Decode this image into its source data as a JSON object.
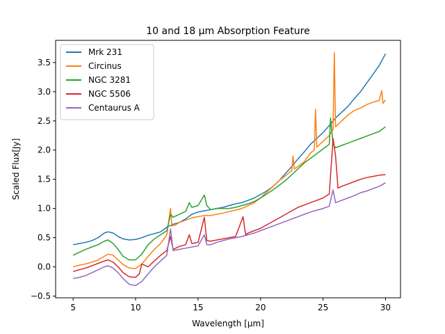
{
  "chart_data": {
    "type": "line",
    "title": "10 and 18 µm Absorption Feature",
    "xlabel": "Wavelength [μm]",
    "ylabel": "Scaled Flux[Jy]",
    "xlim": [
      3.6,
      31.2
    ],
    "ylim": [
      -0.53,
      3.88
    ],
    "xticks": [
      5,
      10,
      15,
      20,
      25,
      30
    ],
    "yticks": [
      -0.5,
      0.0,
      0.5,
      1.0,
      1.5,
      2.0,
      2.5,
      3.0,
      3.5
    ],
    "ytick_labels": [
      "−0.5",
      "0.0",
      "0.5",
      "1.0",
      "1.5",
      "2.0",
      "2.5",
      "3.0",
      "3.5"
    ],
    "grid": false,
    "legend_position": "top-left",
    "series": [
      {
        "name": "Mrk 231",
        "color": "#1f77b4",
        "points": [
          [
            5.0,
            0.38
          ],
          [
            5.5,
            0.4
          ],
          [
            6.0,
            0.42
          ],
          [
            6.5,
            0.45
          ],
          [
            7.0,
            0.5
          ],
          [
            7.5,
            0.58
          ],
          [
            7.8,
            0.6
          ],
          [
            8.2,
            0.58
          ],
          [
            8.6,
            0.52
          ],
          [
            9.0,
            0.48
          ],
          [
            9.5,
            0.46
          ],
          [
            10.0,
            0.47
          ],
          [
            10.5,
            0.5
          ],
          [
            11.0,
            0.54
          ],
          [
            11.5,
            0.57
          ],
          [
            12.0,
            0.6
          ],
          [
            12.5,
            0.68
          ],
          [
            13.0,
            0.73
          ],
          [
            13.5,
            0.76
          ],
          [
            14.0,
            0.82
          ],
          [
            14.5,
            0.9
          ],
          [
            15.0,
            0.94
          ],
          [
            15.5,
            0.96
          ],
          [
            16.0,
            0.98
          ],
          [
            16.5,
            1.0
          ],
          [
            17.0,
            1.02
          ],
          [
            17.5,
            1.05
          ],
          [
            18.0,
            1.08
          ],
          [
            18.5,
            1.1
          ],
          [
            19.0,
            1.14
          ],
          [
            19.5,
            1.18
          ],
          [
            20.0,
            1.24
          ],
          [
            20.5,
            1.3
          ],
          [
            21.0,
            1.38
          ],
          [
            21.5,
            1.48
          ],
          [
            22.0,
            1.6
          ],
          [
            22.5,
            1.72
          ],
          [
            23.0,
            1.85
          ],
          [
            23.5,
            1.97
          ],
          [
            24.0,
            2.1
          ],
          [
            24.5,
            2.2
          ],
          [
            25.0,
            2.3
          ],
          [
            25.5,
            2.42
          ],
          [
            26.0,
            2.55
          ],
          [
            26.5,
            2.65
          ],
          [
            27.0,
            2.75
          ],
          [
            27.5,
            2.88
          ],
          [
            28.0,
            3.0
          ],
          [
            28.5,
            3.15
          ],
          [
            29.0,
            3.3
          ],
          [
            29.5,
            3.45
          ],
          [
            30.0,
            3.65
          ]
        ]
      },
      {
        "name": "Circinus",
        "color": "#ff7f0e",
        "points": [
          [
            5.0,
            0.0
          ],
          [
            5.5,
            0.03
          ],
          [
            6.0,
            0.05
          ],
          [
            6.5,
            0.08
          ],
          [
            7.0,
            0.12
          ],
          [
            7.5,
            0.18
          ],
          [
            7.8,
            0.22
          ],
          [
            8.2,
            0.2
          ],
          [
            8.6,
            0.12
          ],
          [
            9.0,
            0.04
          ],
          [
            9.5,
            -0.02
          ],
          [
            10.0,
            -0.03
          ],
          [
            10.5,
            0.05
          ],
          [
            11.0,
            0.18
          ],
          [
            11.5,
            0.3
          ],
          [
            12.0,
            0.4
          ],
          [
            12.5,
            0.55
          ],
          [
            12.8,
            1.0
          ],
          [
            12.9,
            0.7
          ],
          [
            13.2,
            0.72
          ],
          [
            13.5,
            0.76
          ],
          [
            14.0,
            0.8
          ],
          [
            14.5,
            0.84
          ],
          [
            15.0,
            0.86
          ],
          [
            15.5,
            0.88
          ],
          [
            16.0,
            0.88
          ],
          [
            16.5,
            0.9
          ],
          [
            17.0,
            0.92
          ],
          [
            17.5,
            0.95
          ],
          [
            18.0,
            0.97
          ],
          [
            18.5,
            1.0
          ],
          [
            19.0,
            1.05
          ],
          [
            19.5,
            1.1
          ],
          [
            20.0,
            1.18
          ],
          [
            20.5,
            1.28
          ],
          [
            21.0,
            1.38
          ],
          [
            21.5,
            1.48
          ],
          [
            22.0,
            1.56
          ],
          [
            22.5,
            1.65
          ],
          [
            22.6,
            1.9
          ],
          [
            22.7,
            1.68
          ],
          [
            23.0,
            1.72
          ],
          [
            23.5,
            1.8
          ],
          [
            24.0,
            1.95
          ],
          [
            24.3,
            2.0
          ],
          [
            24.4,
            2.7
          ],
          [
            24.5,
            2.05
          ],
          [
            25.0,
            2.15
          ],
          [
            25.5,
            2.25
          ],
          [
            25.8,
            2.35
          ],
          [
            25.9,
            3.67
          ],
          [
            26.0,
            2.4
          ],
          [
            26.5,
            2.5
          ],
          [
            27.0,
            2.6
          ],
          [
            27.5,
            2.68
          ],
          [
            28.0,
            2.72
          ],
          [
            28.5,
            2.78
          ],
          [
            29.0,
            2.82
          ],
          [
            29.5,
            2.85
          ],
          [
            29.7,
            3.02
          ],
          [
            29.8,
            2.8
          ],
          [
            30.0,
            2.86
          ]
        ]
      },
      {
        "name": "NGC 3281",
        "color": "#2ca02c",
        "points": [
          [
            5.0,
            0.2
          ],
          [
            5.5,
            0.25
          ],
          [
            6.0,
            0.3
          ],
          [
            6.5,
            0.34
          ],
          [
            7.0,
            0.38
          ],
          [
            7.5,
            0.44
          ],
          [
            7.8,
            0.46
          ],
          [
            8.2,
            0.4
          ],
          [
            8.6,
            0.3
          ],
          [
            9.0,
            0.18
          ],
          [
            9.5,
            0.12
          ],
          [
            10.0,
            0.12
          ],
          [
            10.5,
            0.22
          ],
          [
            11.0,
            0.38
          ],
          [
            11.5,
            0.48
          ],
          [
            12.0,
            0.55
          ],
          [
            12.5,
            0.62
          ],
          [
            12.8,
            0.9
          ],
          [
            13.0,
            0.85
          ],
          [
            13.5,
            0.9
          ],
          [
            14.0,
            0.95
          ],
          [
            14.3,
            1.1
          ],
          [
            14.5,
            1.02
          ],
          [
            15.0,
            1.05
          ],
          [
            15.5,
            1.23
          ],
          [
            15.7,
            1.05
          ],
          [
            16.0,
            0.98
          ],
          [
            16.5,
            1.0
          ],
          [
            17.0,
            1.0
          ],
          [
            17.5,
            1.0
          ],
          [
            18.0,
            1.02
          ],
          [
            18.5,
            1.05
          ],
          [
            19.0,
            1.08
          ],
          [
            19.5,
            1.12
          ],
          [
            20.0,
            1.18
          ],
          [
            20.5,
            1.25
          ],
          [
            21.0,
            1.32
          ],
          [
            21.5,
            1.4
          ],
          [
            22.0,
            1.48
          ],
          [
            22.5,
            1.58
          ],
          [
            23.0,
            1.68
          ],
          [
            23.5,
            1.78
          ],
          [
            24.0,
            1.86
          ],
          [
            24.5,
            1.94
          ],
          [
            25.0,
            2.02
          ],
          [
            25.5,
            2.1
          ],
          [
            25.6,
            2.55
          ],
          [
            25.8,
            2.1
          ],
          [
            26.0,
            2.04
          ],
          [
            26.5,
            2.08
          ],
          [
            27.0,
            2.12
          ],
          [
            27.5,
            2.16
          ],
          [
            28.0,
            2.2
          ],
          [
            28.5,
            2.24
          ],
          [
            29.0,
            2.28
          ],
          [
            29.5,
            2.32
          ],
          [
            30.0,
            2.4
          ]
        ]
      },
      {
        "name": "NGC 5506",
        "color": "#d62728",
        "points": [
          [
            5.0,
            -0.08
          ],
          [
            5.5,
            -0.05
          ],
          [
            6.0,
            -0.02
          ],
          [
            6.5,
            0.02
          ],
          [
            7.0,
            0.06
          ],
          [
            7.5,
            0.1
          ],
          [
            7.8,
            0.12
          ],
          [
            8.2,
            0.08
          ],
          [
            8.6,
            0.0
          ],
          [
            9.0,
            -0.1
          ],
          [
            9.5,
            -0.17
          ],
          [
            10.0,
            -0.18
          ],
          [
            10.3,
            -0.12
          ],
          [
            10.5,
            0.05
          ],
          [
            11.0,
            0.0
          ],
          [
            11.5,
            0.1
          ],
          [
            12.0,
            0.2
          ],
          [
            12.5,
            0.28
          ],
          [
            12.8,
            0.52
          ],
          [
            13.0,
            0.3
          ],
          [
            13.5,
            0.35
          ],
          [
            14.0,
            0.38
          ],
          [
            14.3,
            0.55
          ],
          [
            14.5,
            0.4
          ],
          [
            15.0,
            0.42
          ],
          [
            15.5,
            0.85
          ],
          [
            15.7,
            0.45
          ],
          [
            16.0,
            0.44
          ],
          [
            16.5,
            0.46
          ],
          [
            17.0,
            0.48
          ],
          [
            17.5,
            0.5
          ],
          [
            18.0,
            0.52
          ],
          [
            18.6,
            0.86
          ],
          [
            18.8,
            0.55
          ],
          [
            19.0,
            0.58
          ],
          [
            19.5,
            0.62
          ],
          [
            20.0,
            0.66
          ],
          [
            20.5,
            0.72
          ],
          [
            21.0,
            0.78
          ],
          [
            21.5,
            0.84
          ],
          [
            22.0,
            0.9
          ],
          [
            22.5,
            0.96
          ],
          [
            23.0,
            1.02
          ],
          [
            23.5,
            1.06
          ],
          [
            24.0,
            1.1
          ],
          [
            24.5,
            1.14
          ],
          [
            25.0,
            1.18
          ],
          [
            25.5,
            1.25
          ],
          [
            25.8,
            2.2
          ],
          [
            26.0,
            1.9
          ],
          [
            26.2,
            1.35
          ],
          [
            26.5,
            1.38
          ],
          [
            27.0,
            1.42
          ],
          [
            27.5,
            1.46
          ],
          [
            28.0,
            1.5
          ],
          [
            28.5,
            1.53
          ],
          [
            29.0,
            1.55
          ],
          [
            29.5,
            1.57
          ],
          [
            30.0,
            1.58
          ]
        ]
      },
      {
        "name": "Centaurus A",
        "color": "#9467bd",
        "points": [
          [
            5.0,
            -0.2
          ],
          [
            5.5,
            -0.18
          ],
          [
            6.0,
            -0.15
          ],
          [
            6.5,
            -0.1
          ],
          [
            7.0,
            -0.05
          ],
          [
            7.5,
            0.0
          ],
          [
            7.8,
            0.02
          ],
          [
            8.2,
            -0.02
          ],
          [
            8.6,
            -0.1
          ],
          [
            9.0,
            -0.2
          ],
          [
            9.5,
            -0.3
          ],
          [
            10.0,
            -0.32
          ],
          [
            10.5,
            -0.25
          ],
          [
            11.0,
            -0.12
          ],
          [
            11.5,
            0.0
          ],
          [
            12.0,
            0.1
          ],
          [
            12.5,
            0.2
          ],
          [
            12.8,
            0.65
          ],
          [
            13.0,
            0.28
          ],
          [
            13.5,
            0.3
          ],
          [
            14.0,
            0.32
          ],
          [
            14.5,
            0.34
          ],
          [
            15.0,
            0.36
          ],
          [
            15.5,
            0.55
          ],
          [
            15.7,
            0.38
          ],
          [
            16.0,
            0.38
          ],
          [
            16.5,
            0.42
          ],
          [
            17.0,
            0.45
          ],
          [
            17.5,
            0.48
          ],
          [
            18.0,
            0.5
          ],
          [
            18.5,
            0.52
          ],
          [
            19.0,
            0.55
          ],
          [
            19.5,
            0.58
          ],
          [
            20.0,
            0.62
          ],
          [
            20.5,
            0.66
          ],
          [
            21.0,
            0.7
          ],
          [
            21.5,
            0.74
          ],
          [
            22.0,
            0.78
          ],
          [
            22.5,
            0.82
          ],
          [
            23.0,
            0.86
          ],
          [
            23.5,
            0.9
          ],
          [
            24.0,
            0.94
          ],
          [
            24.5,
            0.97
          ],
          [
            25.0,
            1.0
          ],
          [
            25.5,
            1.04
          ],
          [
            25.8,
            1.32
          ],
          [
            26.0,
            1.1
          ],
          [
            26.5,
            1.14
          ],
          [
            27.0,
            1.18
          ],
          [
            27.5,
            1.22
          ],
          [
            28.0,
            1.27
          ],
          [
            28.5,
            1.3
          ],
          [
            29.0,
            1.34
          ],
          [
            29.5,
            1.38
          ],
          [
            30.0,
            1.44
          ]
        ]
      }
    ]
  }
}
